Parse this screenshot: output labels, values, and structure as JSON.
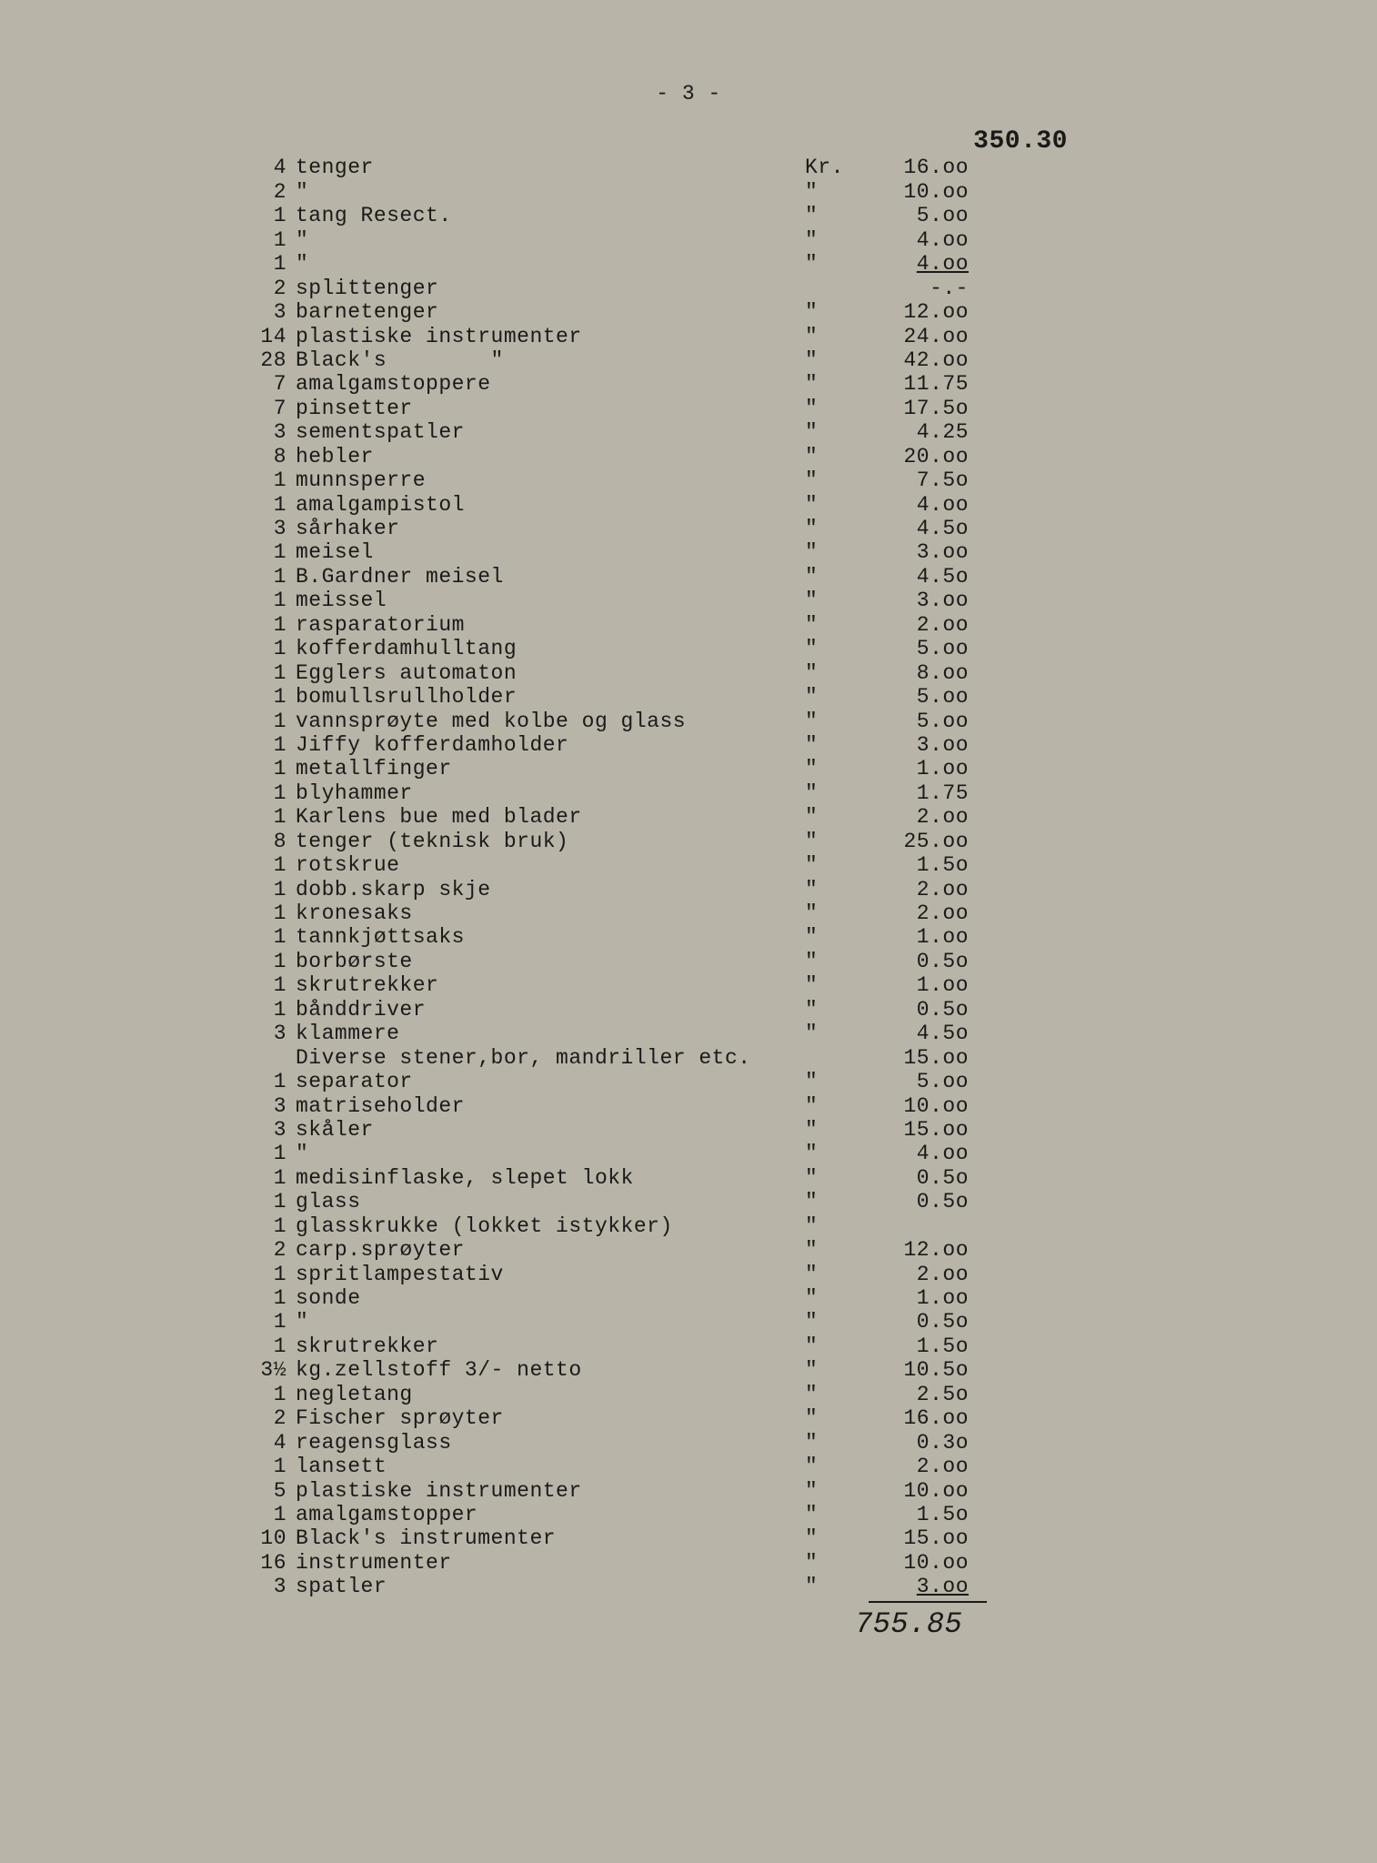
{
  "page_number": "- 3 -",
  "carry_over": "350.30",
  "currency_first": "Kr.",
  "ditto": "\"",
  "rows": [
    {
      "qty": "4",
      "desc": "tenger",
      "unit": "Kr.",
      "price": "16.oo"
    },
    {
      "qty": "2",
      "desc": "\"",
      "unit": "\"",
      "price": "10.oo"
    },
    {
      "qty": "1",
      "desc": "tang Resect.",
      "unit": "\"",
      "price": "5.oo"
    },
    {
      "qty": "1",
      "desc": "\"",
      "unit": "\"",
      "price": "4.oo"
    },
    {
      "qty": "1",
      "desc": "\"",
      "unit": "\"",
      "price": "4.oo",
      "underline": true
    },
    {
      "qty": "2",
      "desc": "splittenger",
      "unit": "",
      "price": "-.-"
    },
    {
      "qty": "3",
      "desc": "barnetenger",
      "unit": "\"",
      "price": "12.oo"
    },
    {
      "qty": "14",
      "desc": "plastiske instrumenter",
      "unit": "\"",
      "price": "24.oo"
    },
    {
      "qty": "28",
      "desc": "Black's        \"",
      "unit": "\"",
      "price": "42.oo"
    },
    {
      "qty": "7",
      "desc": "amalgamstoppere",
      "unit": "\"",
      "price": "11.75"
    },
    {
      "qty": "7",
      "desc": "pinsetter",
      "unit": "\"",
      "price": "17.5o"
    },
    {
      "qty": "3",
      "desc": "sementspatler",
      "unit": "\"",
      "price": "4.25"
    },
    {
      "qty": "8",
      "desc": "hebler",
      "unit": "\"",
      "price": "20.oo"
    },
    {
      "qty": "1",
      "desc": "munnsperre",
      "unit": "\"",
      "price": "7.5o"
    },
    {
      "qty": "1",
      "desc": "amalgampistol",
      "unit": "\"",
      "price": "4.oo"
    },
    {
      "qty": "3",
      "desc": "sårhaker",
      "unit": "\"",
      "price": "4.5o"
    },
    {
      "qty": "1",
      "desc": "meisel",
      "unit": "\"",
      "price": "3.oo"
    },
    {
      "qty": "1",
      "desc": "B.Gardner meisel",
      "unit": "\"",
      "price": "4.5o"
    },
    {
      "qty": "1",
      "desc": "meissel",
      "unit": "\"",
      "price": "3.oo"
    },
    {
      "qty": "1",
      "desc": "rasparatorium",
      "unit": "\"",
      "price": "2.oo"
    },
    {
      "qty": "1",
      "desc": "kofferdamhulltang",
      "unit": "\"",
      "price": "5.oo"
    },
    {
      "qty": "1",
      "desc": "Egglers automaton",
      "unit": "\"",
      "price": "8.oo"
    },
    {
      "qty": "1",
      "desc": "bomullsrullholder",
      "unit": "\"",
      "price": "5.oo"
    },
    {
      "qty": "1",
      "desc": "vannsprøyte med kolbe og glass",
      "unit": "\"",
      "price": "5.oo"
    },
    {
      "qty": "1",
      "desc": "Jiffy kofferdamholder",
      "unit": "\"",
      "price": "3.oo"
    },
    {
      "qty": "1",
      "desc": "metallfinger",
      "unit": "\"",
      "price": "1.oo"
    },
    {
      "qty": "1",
      "desc": "blyhammer",
      "unit": "\"",
      "price": "1.75"
    },
    {
      "qty": "1",
      "desc": "Karlens bue med blader",
      "unit": "\"",
      "price": "2.oo"
    },
    {
      "qty": "8",
      "desc": "tenger (teknisk bruk)",
      "unit": "\"",
      "price": "25.oo"
    },
    {
      "qty": "1",
      "desc": "rotskrue",
      "unit": "\"",
      "price": "1.5o"
    },
    {
      "qty": "1",
      "desc": "dobb.skarp skje",
      "unit": "\"",
      "price": "2.oo"
    },
    {
      "qty": "1",
      "desc": "kronesaks",
      "unit": "\"",
      "price": "2.oo"
    },
    {
      "qty": "1",
      "desc": "tannkjøttsaks",
      "unit": "\"",
      "price": "1.oo"
    },
    {
      "qty": "1",
      "desc": "borbørste",
      "unit": "\"",
      "price": "0.5o"
    },
    {
      "qty": "1",
      "desc": "skrutrekker",
      "unit": "\"",
      "price": "1.oo"
    },
    {
      "qty": "1",
      "desc": "bånddriver",
      "unit": "\"",
      "price": "0.5o"
    },
    {
      "qty": "3",
      "desc": "klammere",
      "unit": "\"",
      "price": "4.5o"
    },
    {
      "qty": "",
      "desc": "Diverse stener,bor, mandriller etc.",
      "unit": "",
      "price": "15.oo"
    },
    {
      "qty": "1",
      "desc": "separator",
      "unit": "\"",
      "price": "5.oo"
    },
    {
      "qty": "3",
      "desc": "matriseholder",
      "unit": "\"",
      "price": "10.oo"
    },
    {
      "qty": "3",
      "desc": "skåler",
      "unit": "\"",
      "price": "15.oo"
    },
    {
      "qty": "1",
      "desc": "\"",
      "unit": "\"",
      "price": "4.oo"
    },
    {
      "qty": "1",
      "desc": "medisinflaske, slepet lokk",
      "unit": "\"",
      "price": "0.5o"
    },
    {
      "qty": "1",
      "desc": "glass",
      "unit": "\"",
      "price": "0.5o"
    },
    {
      "qty": "1",
      "desc": "glasskrukke (lokket istykker)",
      "unit": "\"",
      "price": ""
    },
    {
      "qty": "2",
      "desc": "carp.sprøyter",
      "unit": "\"",
      "price": "12.oo"
    },
    {
      "qty": "1",
      "desc": "spritlampestativ",
      "unit": "\"",
      "price": "2.oo"
    },
    {
      "qty": "1",
      "desc": "sonde",
      "unit": "\"",
      "price": "1.oo"
    },
    {
      "qty": "1",
      "desc": "\"",
      "unit": "\"",
      "price": "0.5o"
    },
    {
      "qty": "1",
      "desc": "skrutrekker",
      "unit": "\"",
      "price": "1.5o"
    },
    {
      "qty": "3½",
      "desc": "kg.zellstoff 3/- netto",
      "unit": "\"",
      "price": "10.5o"
    },
    {
      "qty": "1",
      "desc": "negletang",
      "unit": "\"",
      "price": "2.5o"
    },
    {
      "qty": "2",
      "desc": "Fischer sprøyter",
      "unit": "\"",
      "price": "16.oo"
    },
    {
      "qty": "4",
      "desc": "reagensglass",
      "unit": "\"",
      "price": "0.3o"
    },
    {
      "qty": "1",
      "desc": "lansett",
      "unit": "\"",
      "price": "2.oo"
    },
    {
      "qty": "5",
      "desc": "plastiske instrumenter",
      "unit": "\"",
      "price": "10.oo"
    },
    {
      "qty": "1",
      "desc": "amalgamstopper",
      "unit": "\"",
      "price": "1.5o"
    },
    {
      "qty": "10",
      "desc": "Black's instrumenter",
      "unit": "\"",
      "price": "15.oo"
    },
    {
      "qty": "16",
      "desc": "instrumenter",
      "unit": "\"",
      "price": "10.oo"
    },
    {
      "qty": "3",
      "desc": "spatler",
      "unit": "\"",
      "price": "3.oo",
      "underline": true
    }
  ],
  "total": "755.85"
}
